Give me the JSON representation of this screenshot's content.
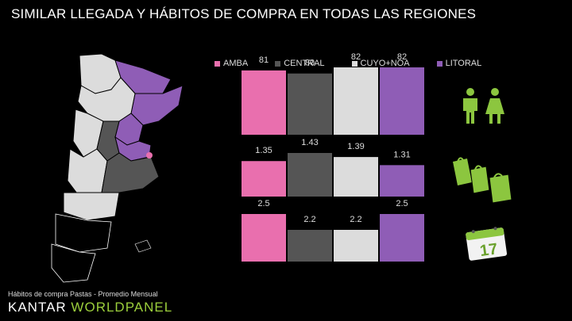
{
  "title": "SIMILAR LLEGADA Y HÁBITOS DE COMPRA EN TODAS LAS REGIONES",
  "footer": {
    "note": "Hábitos de compra Pastas - Promedio Mensual",
    "brand_part1": "KANTAR ",
    "brand_part2": "WORLDPANEL"
  },
  "colors": {
    "AMBA": "#e96fae",
    "CENTRAL": "#555555",
    "CUYO+NOA": "#dcdcdc",
    "LITORAL": "#8f5db6",
    "accent_green": "#8cc63f"
  },
  "icons": [
    "people-icon",
    "shopping-bags-icon",
    "calendar-icon",
    "argentina-map-icon"
  ],
  "chart_data": {
    "type": "bar",
    "categories": [
      "AMBA",
      "CENTRAL",
      "CUYO+NOA",
      "LITORAL"
    ],
    "legend_position": "top",
    "rows": [
      {
        "values": [
          81,
          80,
          82,
          82
        ],
        "labels": [
          "81",
          "80",
          "82",
          "82"
        ]
      },
      {
        "values": [
          1.35,
          1.43,
          1.39,
          1.31
        ],
        "labels": [
          "1.35",
          "1.43",
          "1.39",
          "1.31"
        ]
      },
      {
        "values": [
          2.5,
          2.2,
          2.2,
          2.5
        ],
        "labels": [
          "2.5",
          "2.2",
          "2.2",
          "2.5"
        ]
      }
    ]
  }
}
